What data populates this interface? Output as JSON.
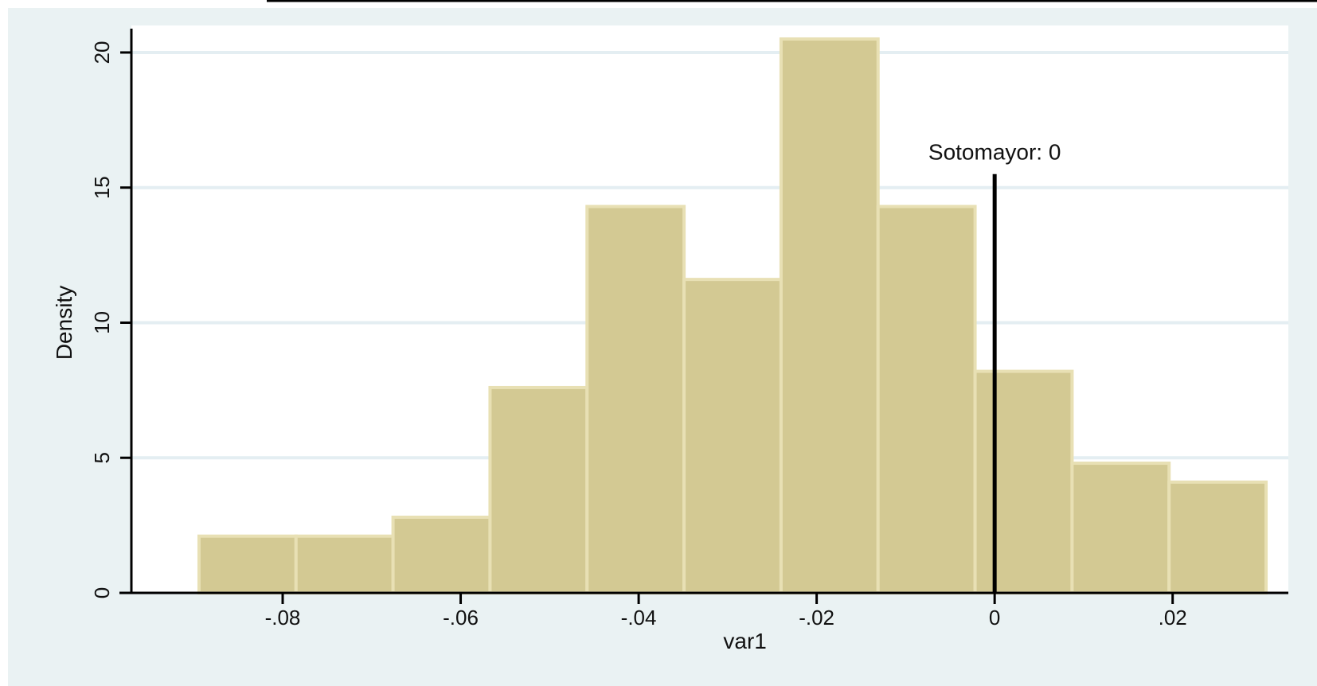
{
  "colors": {
    "outer_background": "#eaf2f3",
    "plot_background": "#ffffff",
    "gridline": "#e4eef2",
    "bar_fill": "#d3c993",
    "bar_edge": "#e8e0b4",
    "axis": "#000000",
    "reference_line": "#000000"
  },
  "chart_data": {
    "type": "bar",
    "subtype": "histogram",
    "title": "",
    "xlabel": "var1",
    "ylabel": "Density",
    "xlim": [
      -0.097,
      0.033
    ],
    "ylim": [
      0,
      21
    ],
    "x_ticks": [
      -0.08,
      -0.06,
      -0.04,
      -0.02,
      0,
      0.02
    ],
    "x_tick_labels": [
      "-.08",
      "-.06",
      "-.04",
      "-.02",
      "0",
      ".02"
    ],
    "y_ticks": [
      0,
      5,
      10,
      15,
      20
    ],
    "y_tick_labels": [
      "0",
      "5",
      "10",
      "15",
      "20"
    ],
    "grid": true,
    "legend": "none",
    "bins": [
      {
        "x_start": -0.0894,
        "x_end": -0.0785,
        "density": 2.1
      },
      {
        "x_start": -0.0785,
        "x_end": -0.0676,
        "density": 2.1
      },
      {
        "x_start": -0.0676,
        "x_end": -0.0567,
        "density": 2.8
      },
      {
        "x_start": -0.0567,
        "x_end": -0.0458,
        "density": 7.6
      },
      {
        "x_start": -0.0458,
        "x_end": -0.0349,
        "density": 14.3
      },
      {
        "x_start": -0.0349,
        "x_end": -0.024,
        "density": 11.6
      },
      {
        "x_start": -0.024,
        "x_end": -0.0131,
        "density": 20.5
      },
      {
        "x_start": -0.0131,
        "x_end": -0.0022,
        "density": 14.3
      },
      {
        "x_start": -0.0022,
        "x_end": 0.0087,
        "density": 8.2
      },
      {
        "x_start": 0.0087,
        "x_end": 0.0196,
        "density": 4.8
      },
      {
        "x_start": 0.0196,
        "x_end": 0.0305,
        "density": 4.1
      }
    ],
    "reference_line": {
      "x": 0,
      "y_top": 15.5,
      "label": "Sotomayor: 0"
    }
  }
}
